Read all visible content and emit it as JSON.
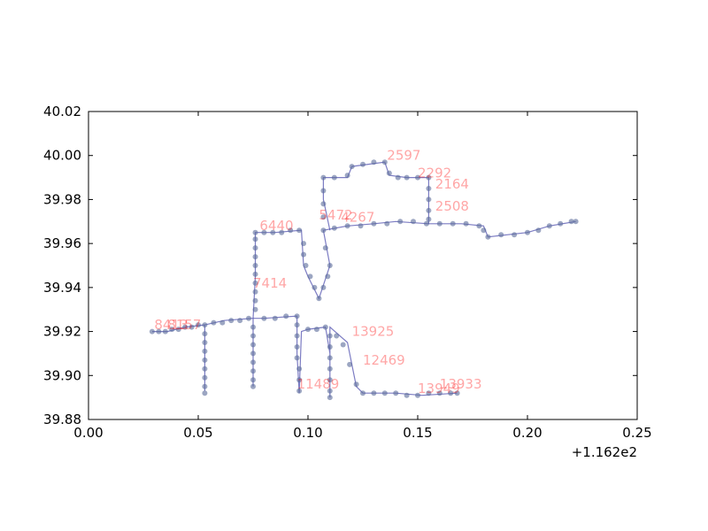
{
  "chart_data": {
    "type": "scatter",
    "title": "",
    "xlabel": "",
    "ylabel": "",
    "xlim": [
      0.0,
      0.25
    ],
    "ylim": [
      39.88,
      40.02
    ],
    "x_offset_label": "+1.162e2",
    "x_ticks": [
      {
        "value": 0.0,
        "label": "0.00"
      },
      {
        "value": 0.05,
        "label": "0.05"
      },
      {
        "value": 0.1,
        "label": "0.10"
      },
      {
        "value": 0.15,
        "label": "0.15"
      },
      {
        "value": 0.2,
        "label": "0.20"
      },
      {
        "value": 0.25,
        "label": "0.25"
      }
    ],
    "y_ticks": [
      {
        "value": 39.88,
        "label": "39.88"
      },
      {
        "value": 39.9,
        "label": "39.90"
      },
      {
        "value": 39.92,
        "label": "39.92"
      },
      {
        "value": 39.94,
        "label": "39.94"
      },
      {
        "value": 39.96,
        "label": "39.96"
      },
      {
        "value": 39.98,
        "label": "39.98"
      },
      {
        "value": 40.0,
        "label": "40.00"
      },
      {
        "value": 40.02,
        "label": "40.02"
      }
    ],
    "grid": false,
    "legend": "none",
    "colors": {
      "points": "#5a6a99",
      "path": "#4444aa",
      "labels": "#ff0000"
    },
    "paths": [
      [
        [
          0.029,
          39.92
        ],
        [
          0.036,
          39.92
        ],
        [
          0.044,
          39.922
        ],
        [
          0.053,
          39.923
        ],
        [
          0.053,
          39.91
        ],
        [
          0.053,
          39.893
        ],
        [
          0.053,
          39.923
        ],
        [
          0.062,
          39.925
        ],
        [
          0.075,
          39.926
        ],
        [
          0.075,
          39.91
        ],
        [
          0.075,
          39.895
        ],
        [
          0.075,
          39.926
        ],
        [
          0.08,
          39.926
        ],
        [
          0.095,
          39.927
        ],
        [
          0.095,
          39.91
        ],
        [
          0.096,
          39.892
        ],
        [
          0.097,
          39.92
        ],
        [
          0.1,
          39.921
        ],
        [
          0.108,
          39.922
        ],
        [
          0.11,
          39.91
        ],
        [
          0.11,
          39.89
        ],
        [
          0.11,
          39.922
        ],
        [
          0.118,
          39.915
        ],
        [
          0.122,
          39.895
        ],
        [
          0.125,
          39.892
        ],
        [
          0.14,
          39.892
        ],
        [
          0.152,
          39.891
        ],
        [
          0.168,
          39.892
        ]
      ],
      [
        [
          0.075,
          39.926
        ],
        [
          0.076,
          39.945
        ],
        [
          0.076,
          39.965
        ],
        [
          0.085,
          39.965
        ],
        [
          0.097,
          39.966
        ],
        [
          0.098,
          39.95
        ],
        [
          0.1,
          39.945
        ],
        [
          0.105,
          39.935
        ],
        [
          0.11,
          39.95
        ],
        [
          0.107,
          39.966
        ],
        [
          0.118,
          39.968
        ],
        [
          0.13,
          39.969
        ],
        [
          0.14,
          39.97
        ],
        [
          0.155,
          39.969
        ],
        [
          0.17,
          39.969
        ],
        [
          0.18,
          39.968
        ],
        [
          0.182,
          39.963
        ],
        [
          0.2,
          39.965
        ],
        [
          0.21,
          39.968
        ],
        [
          0.222,
          39.97
        ]
      ],
      [
        [
          0.11,
          39.966
        ],
        [
          0.107,
          39.98
        ],
        [
          0.107,
          39.99
        ],
        [
          0.118,
          39.99
        ],
        [
          0.12,
          39.995
        ],
        [
          0.135,
          39.997
        ],
        [
          0.137,
          39.991
        ],
        [
          0.145,
          39.99
        ],
        [
          0.155,
          39.99
        ],
        [
          0.155,
          39.975
        ],
        [
          0.155,
          39.969
        ]
      ]
    ],
    "point_labels": [
      {
        "x": 0.03,
        "y": 39.921,
        "label": "8413"
      },
      {
        "x": 0.036,
        "y": 39.921,
        "label": "8157"
      },
      {
        "x": 0.078,
        "y": 39.966,
        "label": "6440"
      },
      {
        "x": 0.075,
        "y": 39.94,
        "label": "7414"
      },
      {
        "x": 0.105,
        "y": 39.971,
        "label": "5472"
      },
      {
        "x": 0.115,
        "y": 39.97,
        "label": "4267"
      },
      {
        "x": 0.136,
        "y": 39.998,
        "label": "2597"
      },
      {
        "x": 0.15,
        "y": 39.99,
        "label": "2292"
      },
      {
        "x": 0.158,
        "y": 39.985,
        "label": "2164"
      },
      {
        "x": 0.158,
        "y": 39.975,
        "label": "2508"
      },
      {
        "x": 0.15,
        "y": 39.892,
        "label": "13949"
      },
      {
        "x": 0.16,
        "y": 39.894,
        "label": "13933"
      },
      {
        "x": 0.12,
        "y": 39.918,
        "label": "13925"
      },
      {
        "x": 0.095,
        "y": 39.894,
        "label": "11489"
      },
      {
        "x": 0.125,
        "y": 39.905,
        "label": "12469"
      }
    ],
    "points": [
      [
        0.029,
        39.92
      ],
      [
        0.032,
        39.92
      ],
      [
        0.035,
        39.92
      ],
      [
        0.038,
        39.921
      ],
      [
        0.041,
        39.921
      ],
      [
        0.044,
        39.922
      ],
      [
        0.047,
        39.922
      ],
      [
        0.05,
        39.923
      ],
      [
        0.053,
        39.923
      ],
      [
        0.053,
        39.919
      ],
      [
        0.053,
        39.915
      ],
      [
        0.053,
        39.911
      ],
      [
        0.053,
        39.907
      ],
      [
        0.053,
        39.903
      ],
      [
        0.053,
        39.899
      ],
      [
        0.053,
        39.895
      ],
      [
        0.053,
        39.892
      ],
      [
        0.057,
        39.924
      ],
      [
        0.061,
        39.924
      ],
      [
        0.065,
        39.925
      ],
      [
        0.069,
        39.925
      ],
      [
        0.073,
        39.926
      ],
      [
        0.075,
        39.922
      ],
      [
        0.075,
        39.918
      ],
      [
        0.075,
        39.914
      ],
      [
        0.075,
        39.91
      ],
      [
        0.075,
        39.906
      ],
      [
        0.075,
        39.902
      ],
      [
        0.075,
        39.898
      ],
      [
        0.075,
        39.895
      ],
      [
        0.076,
        39.93
      ],
      [
        0.076,
        39.934
      ],
      [
        0.076,
        39.938
      ],
      [
        0.076,
        39.942
      ],
      [
        0.076,
        39.946
      ],
      [
        0.076,
        39.95
      ],
      [
        0.076,
        39.954
      ],
      [
        0.076,
        39.958
      ],
      [
        0.076,
        39.962
      ],
      [
        0.076,
        39.965
      ],
      [
        0.08,
        39.965
      ],
      [
        0.084,
        39.965
      ],
      [
        0.088,
        39.965
      ],
      [
        0.092,
        39.966
      ],
      [
        0.096,
        39.966
      ],
      [
        0.08,
        39.926
      ],
      [
        0.085,
        39.926
      ],
      [
        0.09,
        39.927
      ],
      [
        0.095,
        39.927
      ],
      [
        0.095,
        39.923
      ],
      [
        0.095,
        39.918
      ],
      [
        0.095,
        39.913
      ],
      [
        0.095,
        39.908
      ],
      [
        0.096,
        39.903
      ],
      [
        0.096,
        39.898
      ],
      [
        0.096,
        39.893
      ],
      [
        0.098,
        39.96
      ],
      [
        0.098,
        39.955
      ],
      [
        0.099,
        39.95
      ],
      [
        0.101,
        39.945
      ],
      [
        0.103,
        39.94
      ],
      [
        0.105,
        39.935
      ],
      [
        0.107,
        39.94
      ],
      [
        0.109,
        39.945
      ],
      [
        0.11,
        39.95
      ],
      [
        0.108,
        39.958
      ],
      [
        0.107,
        39.966
      ],
      [
        0.1,
        39.921
      ],
      [
        0.104,
        39.921
      ],
      [
        0.108,
        39.922
      ],
      [
        0.11,
        39.918
      ],
      [
        0.11,
        39.913
      ],
      [
        0.11,
        39.908
      ],
      [
        0.11,
        39.903
      ],
      [
        0.11,
        39.898
      ],
      [
        0.11,
        39.893
      ],
      [
        0.11,
        39.89
      ],
      [
        0.113,
        39.918
      ],
      [
        0.116,
        39.914
      ],
      [
        0.119,
        39.905
      ],
      [
        0.122,
        39.896
      ],
      [
        0.125,
        39.892
      ],
      [
        0.13,
        39.892
      ],
      [
        0.135,
        39.892
      ],
      [
        0.14,
        39.892
      ],
      [
        0.145,
        39.891
      ],
      [
        0.15,
        39.891
      ],
      [
        0.155,
        39.892
      ],
      [
        0.16,
        39.892
      ],
      [
        0.165,
        39.892
      ],
      [
        0.168,
        39.892
      ],
      [
        0.112,
        39.967
      ],
      [
        0.118,
        39.968
      ],
      [
        0.124,
        39.968
      ],
      [
        0.13,
        39.969
      ],
      [
        0.136,
        39.969
      ],
      [
        0.142,
        39.97
      ],
      [
        0.148,
        39.97
      ],
      [
        0.154,
        39.969
      ],
      [
        0.16,
        39.969
      ],
      [
        0.166,
        39.969
      ],
      [
        0.172,
        39.969
      ],
      [
        0.178,
        39.968
      ],
      [
        0.18,
        39.966
      ],
      [
        0.182,
        39.963
      ],
      [
        0.188,
        39.964
      ],
      [
        0.194,
        39.964
      ],
      [
        0.2,
        39.965
      ],
      [
        0.205,
        39.966
      ],
      [
        0.21,
        39.968
      ],
      [
        0.215,
        39.969
      ],
      [
        0.22,
        39.97
      ],
      [
        0.222,
        39.97
      ],
      [
        0.107,
        39.972
      ],
      [
        0.107,
        39.978
      ],
      [
        0.107,
        39.984
      ],
      [
        0.107,
        39.99
      ],
      [
        0.112,
        39.99
      ],
      [
        0.118,
        39.991
      ],
      [
        0.12,
        39.995
      ],
      [
        0.125,
        39.996
      ],
      [
        0.13,
        39.997
      ],
      [
        0.135,
        39.997
      ],
      [
        0.137,
        39.992
      ],
      [
        0.141,
        39.99
      ],
      [
        0.145,
        39.99
      ],
      [
        0.15,
        39.99
      ],
      [
        0.155,
        39.99
      ],
      [
        0.155,
        39.985
      ],
      [
        0.155,
        39.98
      ],
      [
        0.155,
        39.975
      ],
      [
        0.155,
        39.971
      ]
    ]
  }
}
